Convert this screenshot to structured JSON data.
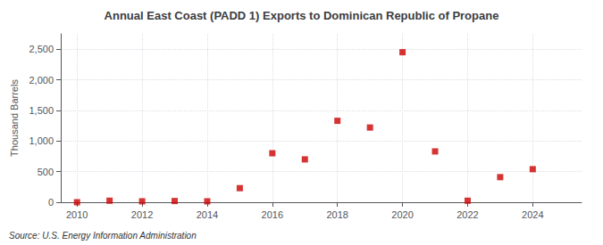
{
  "chart_data": {
    "type": "scatter",
    "title": "Annual East Coast (PADD 1) Exports to Dominican Republic of Propane",
    "ylabel": "Thousand Barrels",
    "source": "Source: U.S. Energy Information Administration",
    "x": [
      2010,
      2011,
      2012,
      2013,
      2014,
      2015,
      2016,
      2017,
      2018,
      2019,
      2020,
      2021,
      2022,
      2023,
      2024
    ],
    "values": [
      0,
      25,
      15,
      20,
      15,
      230,
      800,
      700,
      1330,
      1220,
      2450,
      830,
      25,
      410,
      540
    ],
    "color": "#cc0000",
    "marker": "square",
    "xlim": [
      2009.5,
      2025.5
    ],
    "xticks": [
      2010,
      2012,
      2014,
      2016,
      2018,
      2020,
      2022,
      2024
    ],
    "ylim": [
      0,
      2750
    ],
    "yticks": [
      0,
      500,
      {
        "value": 1000,
        "label": "1,000"
      },
      {
        "value": 1500,
        "label": "1,500"
      },
      {
        "value": 2000,
        "label": "2,000"
      },
      {
        "value": 2500,
        "label": "2,500"
      }
    ],
    "grid": true
  }
}
